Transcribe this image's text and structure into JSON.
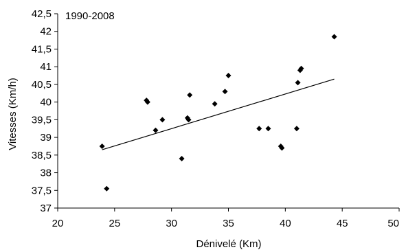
{
  "chart_data": {
    "type": "scatter",
    "title": "",
    "annotation": "1990-2008",
    "xlabel": "Dénivelé (Km)",
    "ylabel": "Vitesses (Km/h)",
    "xlim": [
      20,
      50
    ],
    "ylim": [
      37,
      42.5
    ],
    "x_ticks": [
      "20",
      "25",
      "30",
      "35",
      "40",
      "45",
      "50"
    ],
    "y_ticks": [
      "37",
      "37,5",
      "38",
      "38,5",
      "39",
      "39,5",
      "40",
      "40,5",
      "41",
      "41,5",
      "42",
      "42,5"
    ],
    "grid": false,
    "legend": "none",
    "marker_color": "#000000",
    "points": [
      {
        "x": 23.9,
        "y": 38.75
      },
      {
        "x": 24.3,
        "y": 37.55
      },
      {
        "x": 27.8,
        "y": 40.05
      },
      {
        "x": 27.9,
        "y": 40.0
      },
      {
        "x": 28.6,
        "y": 39.2
      },
      {
        "x": 29.2,
        "y": 39.5
      },
      {
        "x": 30.9,
        "y": 38.4
      },
      {
        "x": 31.4,
        "y": 39.55
      },
      {
        "x": 31.5,
        "y": 39.5
      },
      {
        "x": 31.6,
        "y": 40.2
      },
      {
        "x": 33.8,
        "y": 39.95
      },
      {
        "x": 34.7,
        "y": 40.3
      },
      {
        "x": 35.0,
        "y": 40.75
      },
      {
        "x": 37.7,
        "y": 39.25
      },
      {
        "x": 38.5,
        "y": 39.25
      },
      {
        "x": 39.6,
        "y": 38.75
      },
      {
        "x": 39.7,
        "y": 38.7
      },
      {
        "x": 41.0,
        "y": 39.25
      },
      {
        "x": 41.1,
        "y": 40.55
      },
      {
        "x": 41.3,
        "y": 40.9
      },
      {
        "x": 41.4,
        "y": 40.95
      },
      {
        "x": 44.3,
        "y": 41.85
      }
    ],
    "trendline": {
      "x": [
        23.9,
        44.3
      ],
      "y": [
        38.65,
        40.65
      ]
    }
  }
}
